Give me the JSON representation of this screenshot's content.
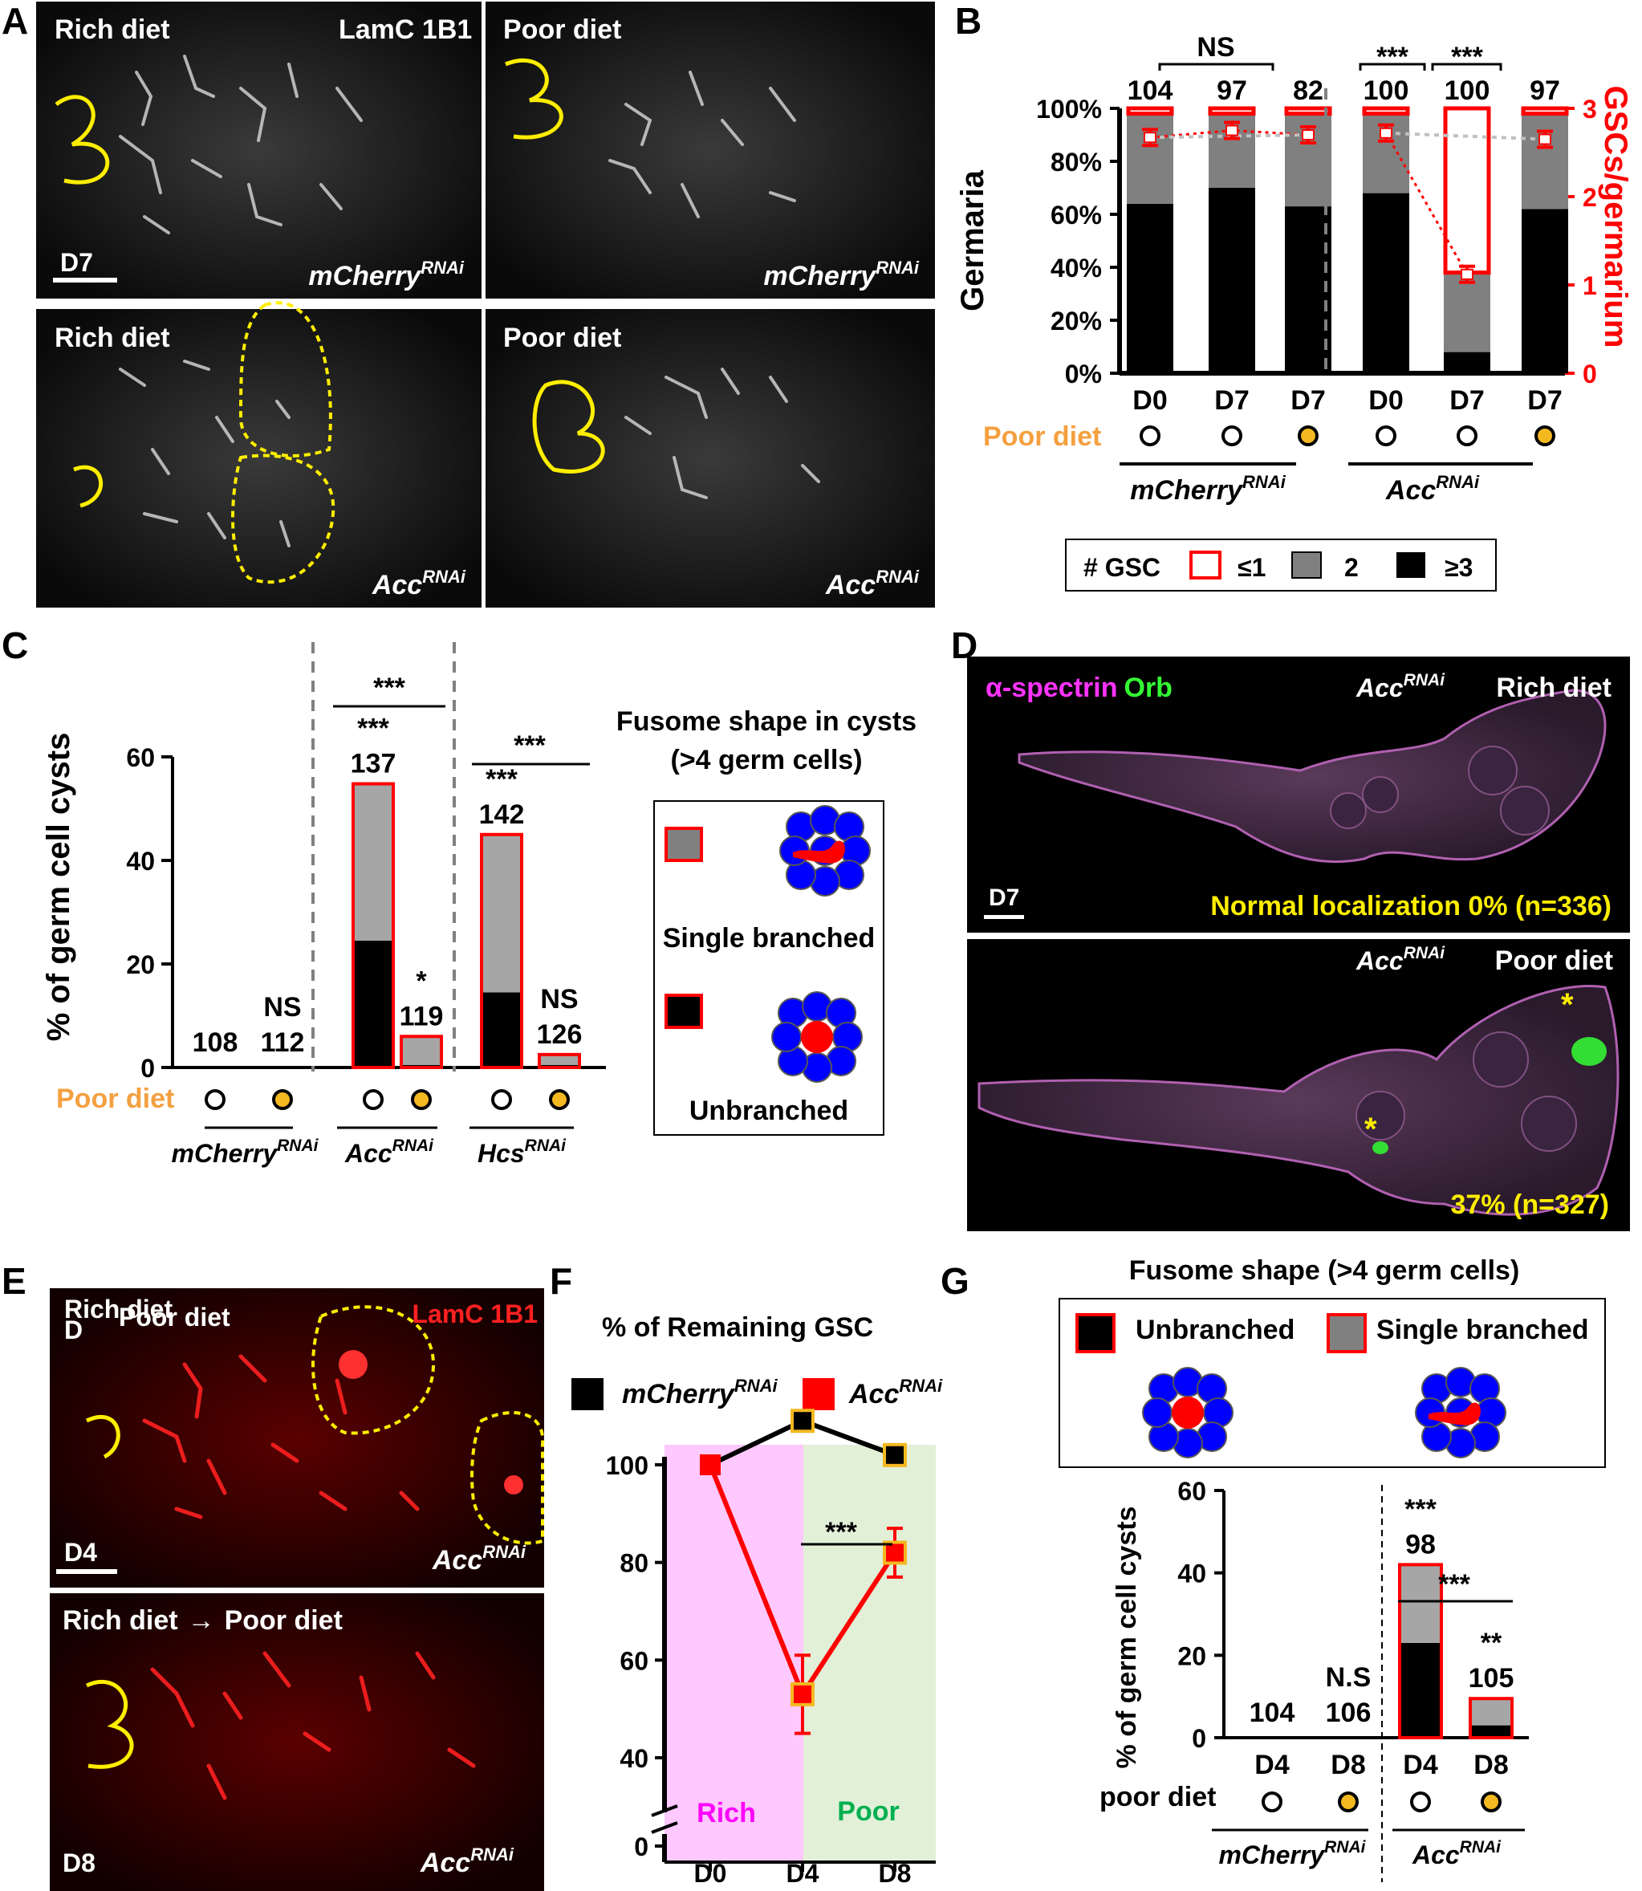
{
  "panels": {
    "A": {
      "letter": "A",
      "tiles": [
        {
          "diet": "Rich  diet",
          "stain": "LamC 1B1",
          "scale": "D7",
          "genotype": "mCherry",
          "sup": "RNAi"
        },
        {
          "diet": "Poor diet",
          "genotype": "mCherry",
          "sup": "RNAi"
        },
        {
          "diet": "Rich diet",
          "genotype": "Acc",
          "sup": "RNAi"
        },
        {
          "diet": "Poor diet",
          "genotype": "Acc",
          "sup": "RNAi"
        }
      ]
    },
    "B": {
      "letter": "B",
      "ylabel_left": "Germaria",
      "ylabel_right": "GSCs/germarium",
      "left_ticks": [
        "100%",
        "80%",
        "60%",
        "40%",
        "20%",
        "0%"
      ],
      "right_ticks": [
        "3",
        "2",
        "1",
        "0"
      ],
      "days": [
        "D0",
        "D7",
        "D7",
        "D0",
        "D7",
        "D7"
      ],
      "n": [
        "104",
        "97",
        "82",
        "100",
        "100",
        "97"
      ],
      "poor_diet_label": "Poor diet",
      "poor_diet": [
        false,
        false,
        true,
        false,
        false,
        true
      ],
      "sig": {
        "ns": "NS",
        "s1": "***",
        "s2": "***"
      },
      "groups": [
        {
          "name": "mCherry",
          "sup": "RNAi"
        },
        {
          "name": "Acc",
          "sup": "RNAi"
        }
      ],
      "legend": {
        "title": "# GSC",
        "items": [
          "≤1",
          "2",
          "≥3"
        ]
      }
    },
    "C": {
      "letter": "C",
      "ylabel": "% of germ cell cysts",
      "ticks": [
        "60",
        "40",
        "20",
        "0"
      ],
      "poor_diet_label": "Poor diet",
      "n": [
        "108",
        "112",
        "137",
        "119",
        "142",
        "126"
      ],
      "marks": [
        "",
        "NS",
        "***",
        "*",
        "***",
        "NS"
      ],
      "bracket_sig": [
        "***",
        "***"
      ],
      "poor_diet": [
        false,
        true,
        false,
        true,
        false,
        true
      ],
      "groups": [
        {
          "name": "mCherry",
          "sup": "RNAi"
        },
        {
          "name": "Acc",
          "sup": "RNAi"
        },
        {
          "name": "Hcs",
          "sup": "RNAi"
        }
      ],
      "legend": {
        "title1": "Fusome shape in cysts",
        "title2": "(>4 germ cells)",
        "single": "Single branched",
        "unbranched": "Unbranched"
      }
    },
    "D": {
      "letter": "D",
      "stain1": "α-spectrin",
      "stain2": "Orb",
      "top": {
        "genotype": "Acc",
        "sup": "RNAi",
        "diet": "Rich diet",
        "scale": "D7",
        "result": "Normal localization 0% (n=336)"
      },
      "bottom": {
        "genotype": "Acc",
        "sup": "RNAi",
        "diet": "Poor diet",
        "result": "37% (n=327)",
        "asterisk": "*"
      }
    },
    "E": {
      "letter": "E",
      "top": {
        "overlay1": "Rich diet",
        "overlay2": "D",
        "overlay3": "Poor diet",
        "stain": "LamC 1B1",
        "scale": "D4",
        "genotype": "Acc",
        "sup": "RNAi"
      },
      "bottom": {
        "diet_from": "Rich diet",
        "arrow": "→",
        "diet_to": "Poor diet",
        "day": "D8",
        "genotype": "Acc",
        "sup": "RNAi"
      }
    },
    "F": {
      "letter": "F",
      "title": "%  of Remaining GSC",
      "legend": [
        {
          "name": "mCherry",
          "sup": "RNAi",
          "color": "#000000"
        },
        {
          "name": "Acc",
          "sup": "RNAi",
          "color": "#ff0000"
        }
      ],
      "ticks": [
        "100",
        "80",
        "60",
        "40",
        "0"
      ],
      "sig": "***",
      "zone_labels": [
        "Rich",
        "Poor"
      ]
    },
    "G": {
      "letter": "G",
      "title": "Fusome shape (>4 germ cells)",
      "legend": {
        "unbranched": "Unbranched",
        "single": "Single branched"
      },
      "ylabel": "% of germ cell cysts",
      "ticks": [
        "60",
        "40",
        "20",
        "0"
      ],
      "days": [
        "D4",
        "D8",
        "D4",
        "D8"
      ],
      "n": [
        "104",
        "106",
        "98",
        "105"
      ],
      "marks": [
        "",
        "N.S",
        "***",
        "**"
      ],
      "bracket_sig": "***",
      "poor_diet_label": "poor diet",
      "poor_diet": [
        false,
        true,
        false,
        true
      ],
      "groups": [
        {
          "name": "mCherry",
          "sup": "RNAi"
        },
        {
          "name": "Acc",
          "sup": "RNAi"
        }
      ]
    }
  },
  "chart_data": [
    {
      "type": "bar",
      "panel": "B",
      "categories": [
        "D0",
        "D7",
        "D7",
        "D0",
        "D7",
        "D7"
      ],
      "series": [
        {
          "name": "≥3",
          "values": [
            64,
            70,
            63,
            68,
            8,
            62
          ]
        },
        {
          "name": "2",
          "values": [
            34,
            28,
            35,
            30,
            30,
            36
          ]
        },
        {
          "name": "≤1",
          "values": [
            2,
            2,
            2,
            2,
            62,
            2
          ]
        }
      ],
      "secondary": {
        "gsc_per_germarium": [
          2.67,
          2.75,
          2.7,
          2.72,
          1.12,
          2.65
        ],
        "ylim": [
          0,
          3
        ]
      },
      "ylabel": "Germaria",
      "ylim": [
        0,
        100
      ]
    },
    {
      "type": "bar",
      "panel": "C",
      "categories": [
        "mCherry",
        "mCherry",
        "Acc",
        "Acc",
        "Hcs",
        "Hcs"
      ],
      "series": [
        {
          "name": "Unbranched",
          "values": [
            0,
            0,
            24.5,
            0.5,
            14.5,
            0.5
          ]
        },
        {
          "name": "Single branched",
          "values": [
            0,
            0,
            30.3,
            5.5,
            30.5,
            2.0
          ]
        }
      ],
      "ylabel": "% of germ cell cysts",
      "ylim": [
        0,
        60
      ]
    },
    {
      "type": "line",
      "panel": "F",
      "x": [
        "D0",
        "D4",
        "D8"
      ],
      "series": [
        {
          "name": "mCherry",
          "values": [
            100,
            109,
            102
          ]
        },
        {
          "name": "Acc",
          "values": [
            100,
            53,
            82
          ],
          "err": [
            0,
            8,
            5
          ]
        }
      ],
      "ylim": [
        0,
        110
      ]
    },
    {
      "type": "bar",
      "panel": "G",
      "categories": [
        "D4",
        "D8",
        "D4",
        "D8"
      ],
      "series": [
        {
          "name": "Unbranched",
          "values": [
            0,
            0,
            23,
            3
          ]
        },
        {
          "name": "Single branched",
          "values": [
            0,
            0,
            19,
            6.5
          ]
        }
      ],
      "ylabel": "% of germ cell cysts",
      "ylim": [
        0,
        60
      ]
    }
  ]
}
